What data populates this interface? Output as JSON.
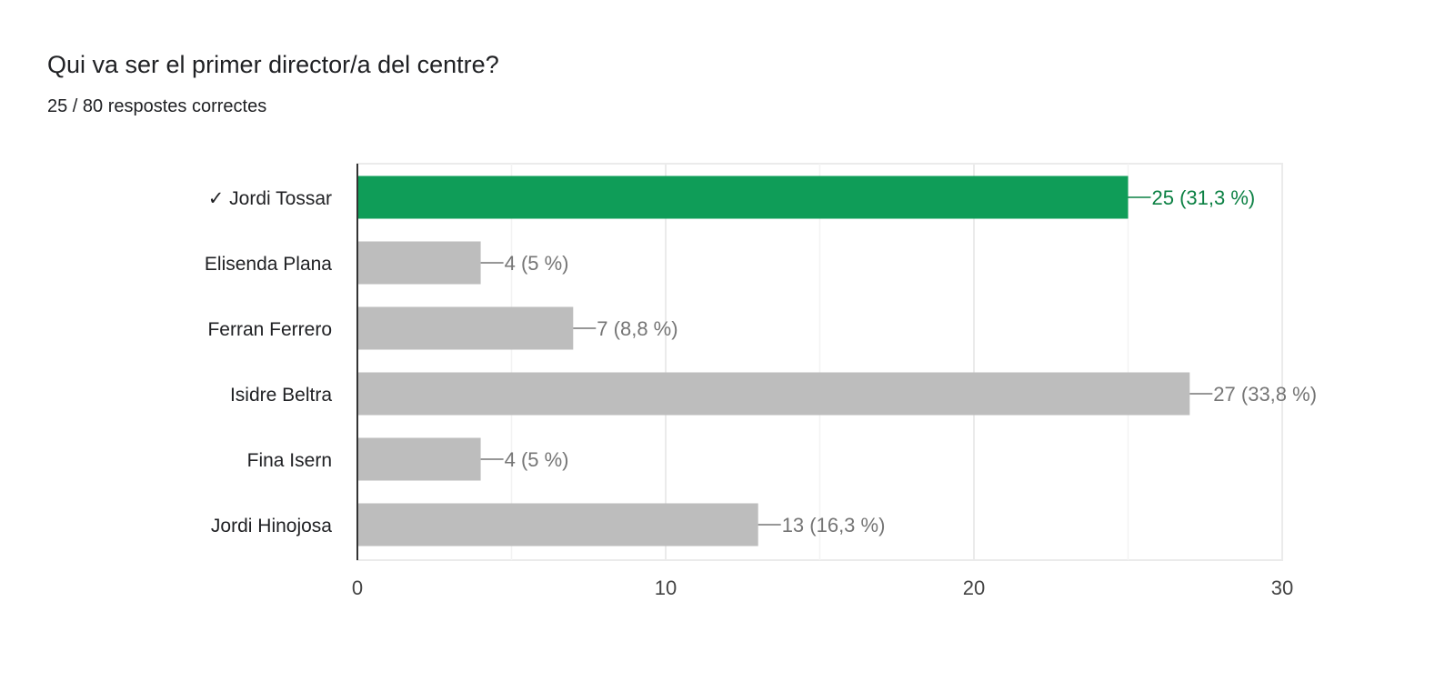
{
  "header": {
    "title": "Qui va ser el primer director/a del centre?",
    "subtitle": "25 / 80 respostes correctes"
  },
  "colors": {
    "correct": "#0f9d58",
    "correct_label": "#0b8043",
    "other": "#bdbdbd",
    "other_label": "#757575"
  },
  "chart_data": {
    "type": "bar",
    "orientation": "horizontal",
    "title": "Qui va ser el primer director/a del centre?",
    "categories": [
      "✓ Jordi Tossar",
      "Elisenda Plana",
      "Ferran Ferrero",
      "Isidre Beltra",
      "Fina Isern",
      "Jordi Hinojosa"
    ],
    "values": [
      25,
      4,
      7,
      27,
      4,
      13
    ],
    "data_labels": [
      "25 (31,3 %)",
      "4 (5 %)",
      "7 (8,8 %)",
      "27 (33,8 %)",
      "4 (5 %)",
      "13 (16,3 %)"
    ],
    "correct": [
      true,
      false,
      false,
      false,
      false,
      false
    ],
    "xlim": [
      0,
      30
    ],
    "xticks": [
      "0",
      "10",
      "20",
      "30"
    ],
    "xtick_values": [
      0,
      10,
      20,
      30
    ],
    "minor_grid": [
      5,
      15,
      25
    ],
    "grid": true,
    "xlabel": "",
    "ylabel": ""
  }
}
